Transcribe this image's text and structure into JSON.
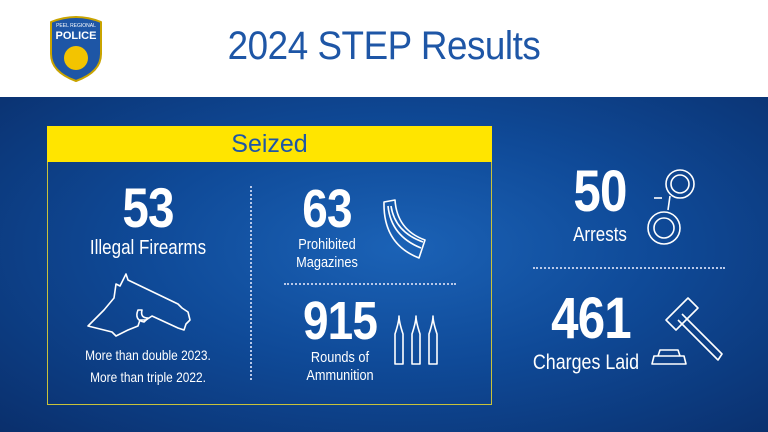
{
  "header": {
    "logo_text": "PEEL REGIONAL POLICE",
    "title": "2024 STEP Results"
  },
  "seized": {
    "heading": "Seized",
    "firearms": {
      "value": "53",
      "label": "Illegal Firearms",
      "note1": "More than double 2023.",
      "note2": "More than triple 2022.",
      "icon": "handgun-icon"
    },
    "magazines": {
      "value": "63",
      "label1": "Prohibited",
      "label2": "Magazines",
      "icon": "magazine-icon"
    },
    "ammunition": {
      "value": "915",
      "label1": "Rounds of",
      "label2": "Ammunition",
      "icon": "bullets-icon"
    }
  },
  "arrests": {
    "value": "50",
    "label": "Arrests",
    "icon": "handcuffs-icon"
  },
  "charges": {
    "value": "461",
    "label": "Charges Laid",
    "icon": "gavel-icon"
  },
  "colors": {
    "primary_blue": "#1e56a6",
    "yellow": "#ffe500"
  }
}
